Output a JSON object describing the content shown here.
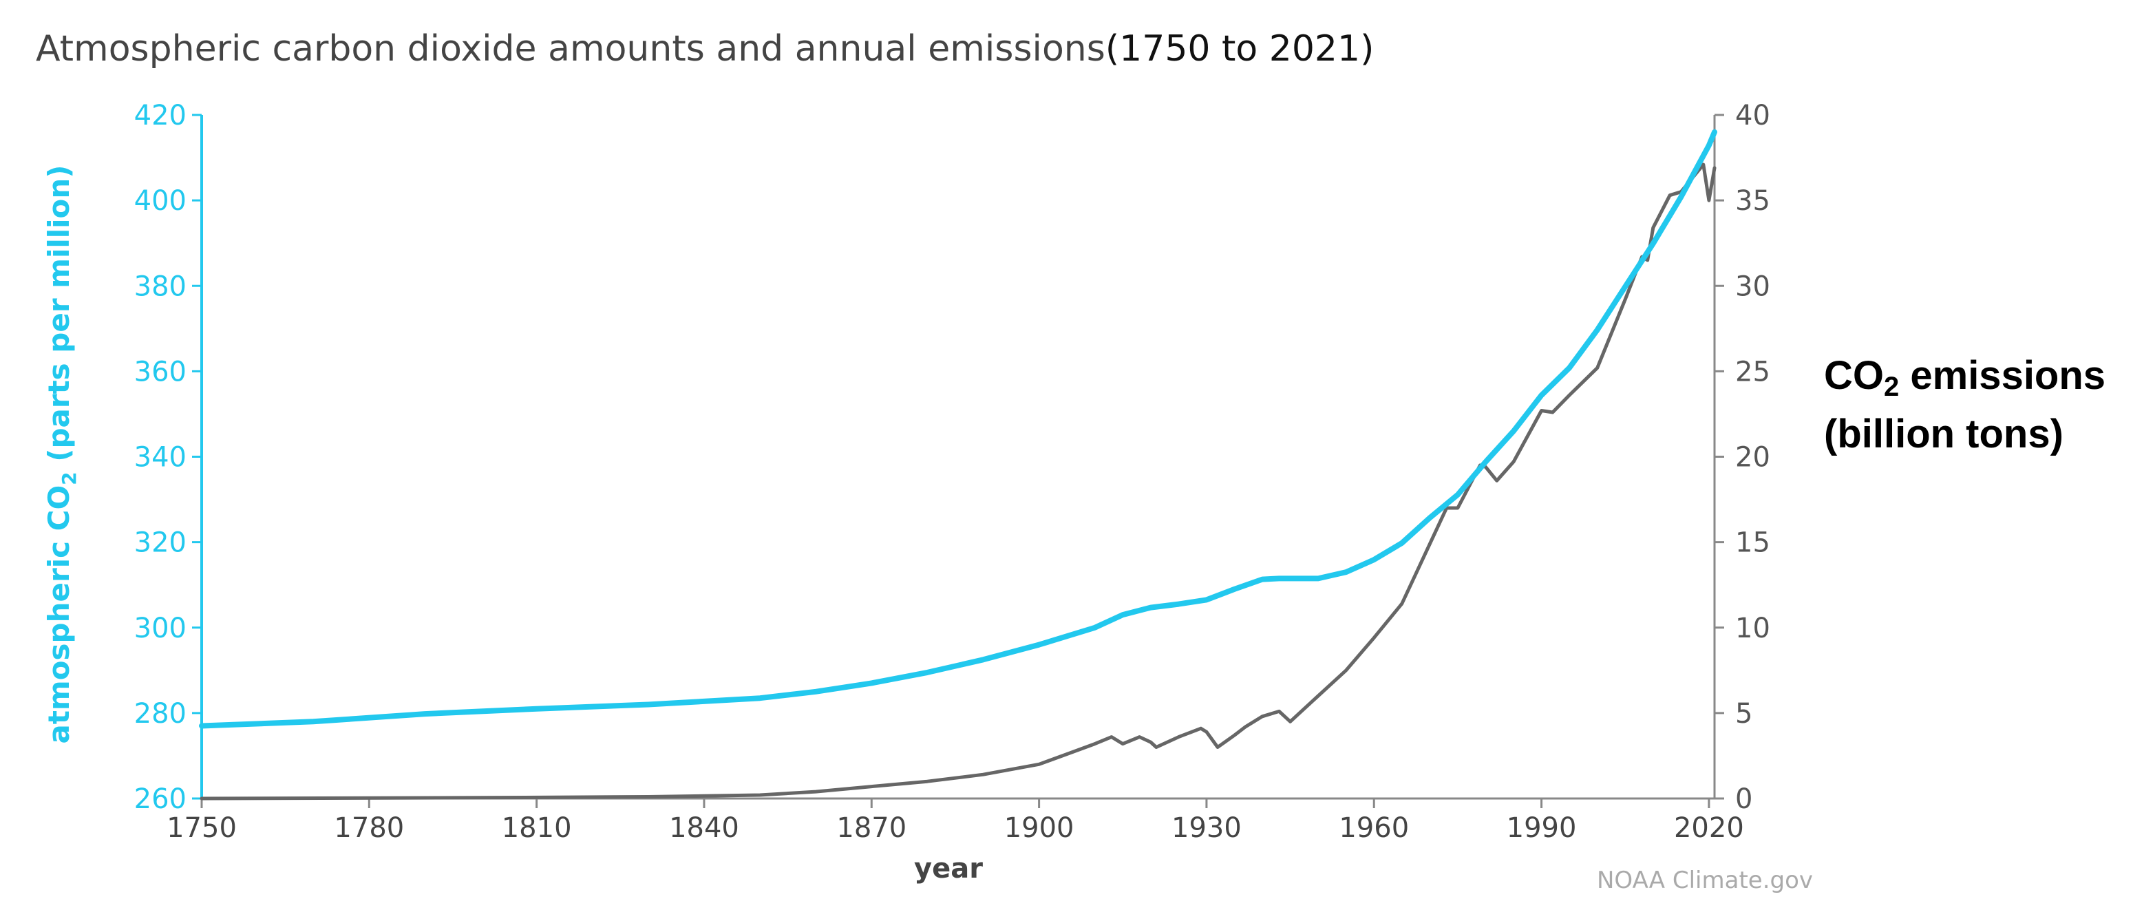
{
  "chart_data": {
    "type": "line",
    "title": "Atmospheric carbon dioxide amounts and annual emissions",
    "title_range": "(1750 to 2021)",
    "xlabel": "year",
    "ylabel": "atmospheric CO",
    "ylabel_sub": "2",
    "ylabel_tail": " (parts per million)",
    "y2label_line1": "CO",
    "y2label_sub": "2",
    "y2label_line1_tail": " emissions",
    "y2label_line2": "(billion tons)",
    "credit": "NOAA Climate.gov",
    "xlim": [
      1750,
      2021
    ],
    "ylim": [
      260,
      420
    ],
    "y2lim": [
      0,
      40
    ],
    "x_ticks": [
      1750,
      1780,
      1810,
      1840,
      1870,
      1900,
      1930,
      1960,
      1990,
      2020
    ],
    "y_ticks": [
      260,
      280,
      300,
      320,
      340,
      360,
      380,
      400,
      420
    ],
    "y2_ticks": [
      0,
      5,
      10,
      15,
      20,
      25,
      30,
      35,
      40
    ],
    "series": [
      {
        "name": "atmospheric CO2 (ppm)",
        "axis": "left",
        "color": "#22c8ee",
        "x": [
          1750,
          1770,
          1790,
          1810,
          1830,
          1850,
          1860,
          1870,
          1880,
          1890,
          1900,
          1910,
          1915,
          1920,
          1925,
          1930,
          1935,
          1940,
          1943,
          1950,
          1955,
          1960,
          1965,
          1970,
          1975,
          1980,
          1985,
          1990,
          1995,
          2000,
          2005,
          2010,
          2015,
          2020,
          2021
        ],
        "values": [
          277,
          278,
          279.8,
          281,
          282,
          283.5,
          285,
          287,
          289.5,
          292.5,
          296,
          300,
          303,
          304.7,
          305.5,
          306.5,
          309,
          311.3,
          311.5,
          311.5,
          313,
          315.9,
          319.8,
          325.7,
          331.1,
          338.8,
          346,
          354.4,
          360.8,
          369.7,
          379.8,
          389.9,
          400.8,
          412.9,
          416
        ]
      },
      {
        "name": "CO2 emissions (billion tons)",
        "axis": "right",
        "color": "#666666",
        "x": [
          1750,
          1800,
          1830,
          1850,
          1860,
          1870,
          1880,
          1890,
          1900,
          1905,
          1910,
          1913,
          1915,
          1918,
          1920,
          1921,
          1925,
          1929,
          1930,
          1932,
          1935,
          1937,
          1940,
          1943,
          1945,
          1946,
          1950,
          1955,
          1960,
          1965,
          1970,
          1973,
          1975,
          1979,
          1980,
          1982,
          1985,
          1990,
          1992,
          1995,
          2000,
          2005,
          2008,
          2009,
          2010,
          2013,
          2015,
          2019,
          2020,
          2021
        ],
        "values": [
          0,
          0.05,
          0.1,
          0.2,
          0.4,
          0.7,
          1.0,
          1.4,
          2.0,
          2.6,
          3.2,
          3.6,
          3.2,
          3.6,
          3.3,
          3.0,
          3.6,
          4.1,
          3.9,
          3.0,
          3.7,
          4.2,
          4.8,
          5.1,
          4.5,
          4.8,
          6.0,
          7.5,
          9.4,
          11.4,
          14.9,
          17.0,
          17.0,
          19.5,
          19.4,
          18.6,
          19.7,
          22.7,
          22.6,
          23.6,
          25.2,
          29.2,
          31.7,
          31.5,
          33.4,
          35.3,
          35.5,
          37.1,
          35.0,
          36.9
        ]
      }
    ]
  }
}
